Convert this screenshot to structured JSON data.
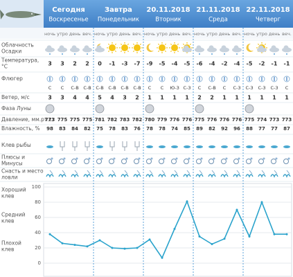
{
  "days": [
    {
      "date": "Сегодня",
      "weekday": "Воскресенье"
    },
    {
      "date": "Завтра",
      "weekday": "Понедельник"
    },
    {
      "date": "20.11.2018",
      "weekday": "Вторник"
    },
    {
      "date": "21.11.2018",
      "weekday": "Среда"
    },
    {
      "date": "22.11.2018",
      "weekday": "Четверг"
    }
  ],
  "periods": [
    "ночь",
    "утро",
    "день",
    "веч."
  ],
  "row_labels": {
    "clouds": [
      "Облачность",
      "Осадки"
    ],
    "temperature": [
      "Температура,",
      "°C"
    ],
    "vane": [
      "Флюгер"
    ],
    "wind": [
      "Ветер, м/с"
    ],
    "moon": [
      "Фаза Луны"
    ],
    "pressure": [
      "Давление, мм.рт.ст"
    ],
    "humidity": [
      "Влажность, %"
    ],
    "bite": [
      "Клев рыбы"
    ],
    "pros": [
      "Плюсы и",
      "Минусы"
    ],
    "tackle": [
      "Снасть и место",
      "ловли"
    ]
  },
  "temperature": [
    3,
    3,
    2,
    2,
    0,
    -1,
    -3,
    -7,
    -9,
    -5,
    -4,
    -5,
    -6,
    -4,
    -2,
    -4,
    -5,
    -2,
    -1,
    -1
  ],
  "wind_dir": [
    "С",
    "С",
    "С-В",
    "С-В",
    "С-В",
    "С-В",
    "С-В",
    "С-В",
    "С",
    "С",
    "Ю-З",
    "С-З",
    "С",
    "С-В",
    "С",
    "С-З",
    "С-З",
    "С-З",
    "С-З",
    "С"
  ],
  "wind_speed": [
    3,
    3,
    4,
    4,
    5,
    4,
    3,
    2,
    1,
    1,
    1,
    1,
    2,
    2,
    1,
    1,
    1,
    1,
    1,
    1
  ],
  "pressure": [
    773,
    775,
    775,
    775,
    781,
    782,
    783,
    782,
    780,
    779,
    776,
    776,
    775,
    776,
    776,
    776,
    775,
    774,
    773,
    773
  ],
  "humidity": [
    98,
    83,
    84,
    82,
    75,
    78,
    83,
    76,
    78,
    78,
    74,
    85,
    89,
    82,
    92,
    96,
    88,
    77,
    77,
    87
  ],
  "chart_data": {
    "type": "line",
    "band_labels": [
      [
        "Хороший",
        "клев"
      ],
      [
        "Средний",
        "клев"
      ],
      [
        "Плохой",
        "клев"
      ]
    ],
    "values": [
      38,
      26,
      24,
      22,
      30,
      20,
      19,
      20,
      31,
      7,
      45,
      81,
      35,
      25,
      32,
      70,
      35,
      80,
      38,
      38
    ],
    "color": "#2aa3cc",
    "ylim": [
      0,
      100
    ],
    "yticks": [
      0,
      20,
      40,
      60,
      80,
      100
    ],
    "grid": true
  }
}
